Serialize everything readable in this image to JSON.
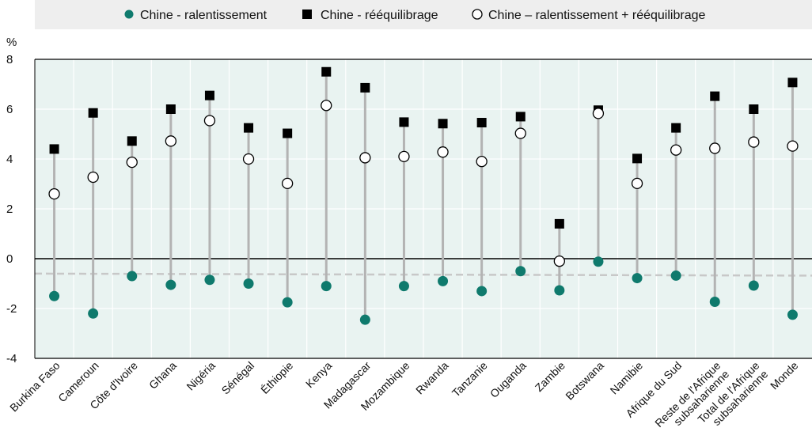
{
  "chart_data": {
    "type": "scatter",
    "title": "",
    "xlabel": "",
    "ylabel": "%",
    "ylim": [
      -4,
      8
    ],
    "yticks": [
      -4,
      -2,
      0,
      2,
      4,
      6,
      8
    ],
    "grid": true,
    "legend_position": "top",
    "categories": [
      "Burkina Faso",
      "Cameroun",
      "Côte d'Ivoire",
      "Ghana",
      "Nigéria",
      "Sénégal",
      "Éthiopie",
      "Kenya",
      "Madagascar",
      "Mozambique",
      "Rwanda",
      "Tanzanie",
      "Ouganda",
      "Zambie",
      "Botswana",
      "Namibie",
      "Afrique du Sud",
      "Reste de l'Afrique subsaharienne",
      "Total de l'Afrique subsaharienne",
      "Monde"
    ],
    "series": [
      {
        "name": "Chine - ralentissement",
        "marker": "filled-circle",
        "color": "#0f7a6d",
        "values": [
          -1.5,
          -2.2,
          -0.7,
          -1.05,
          -0.85,
          -1.0,
          -1.75,
          -1.1,
          -2.45,
          -1.1,
          -0.9,
          -1.3,
          -0.5,
          -1.27,
          -0.12,
          -0.78,
          -0.68,
          -1.73,
          -1.08,
          -2.25
        ]
      },
      {
        "name": "Chine - rééquilibrage",
        "marker": "square",
        "color": "#000000",
        "values": [
          4.4,
          5.85,
          4.72,
          6.0,
          6.55,
          5.25,
          5.03,
          7.5,
          6.86,
          5.48,
          5.42,
          5.46,
          5.7,
          1.4,
          5.96,
          4.02,
          5.25,
          6.52,
          6.0,
          7.07
        ]
      },
      {
        "name": "Chine – ralentissement + rééquilibrage",
        "marker": "open-circle",
        "color": "#000000",
        "values": [
          2.6,
          3.27,
          3.87,
          4.72,
          5.54,
          4.0,
          3.02,
          6.15,
          4.05,
          4.1,
          4.28,
          3.9,
          5.03,
          -0.1,
          5.83,
          3.02,
          4.36,
          4.43,
          4.68,
          4.52
        ]
      }
    ],
    "reference_line": {
      "style": "dashed",
      "color": "#c8c8c8",
      "values_at_edges": [
        -0.6,
        -0.68
      ]
    },
    "colors": {
      "plot_background": "#e9f3f1",
      "legend_background": "#eeeeee",
      "stem": "#b3b3b3",
      "accent": "#0f7a6d"
    }
  }
}
